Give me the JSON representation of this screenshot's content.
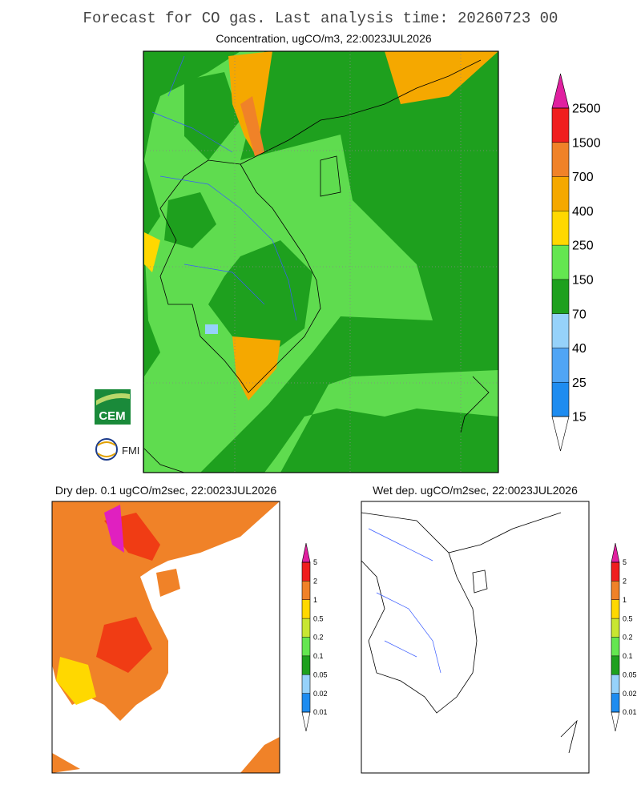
{
  "header": {
    "title": "Forecast for CO gas. Last analysis time: 20260723 00"
  },
  "main_map": {
    "title": "Concentration, ugCO/m3, 22:0023JUL2026",
    "legend": {
      "labels": [
        "2500",
        "1500",
        "700",
        "400",
        "250",
        "150",
        "70",
        "40",
        "25",
        "15"
      ]
    }
  },
  "logos": {
    "cem": "CEM",
    "fmi": "FMI"
  },
  "dry_map": {
    "title": "Dry dep. 0.1 ugCO/m2sec, 22:0023JUL2026",
    "legend": {
      "labels": [
        "5",
        "2",
        "1",
        "0.5",
        "0.2",
        "0.1",
        "0.05",
        "0.02",
        "0.01"
      ]
    }
  },
  "wet_map": {
    "title": "Wet dep. ugCO/m2sec, 22:0023JUL2026",
    "legend": {
      "labels": [
        "5",
        "2",
        "1",
        "0.5",
        "0.2",
        "0.1",
        "0.05",
        "0.02",
        "0.01"
      ]
    }
  }
}
